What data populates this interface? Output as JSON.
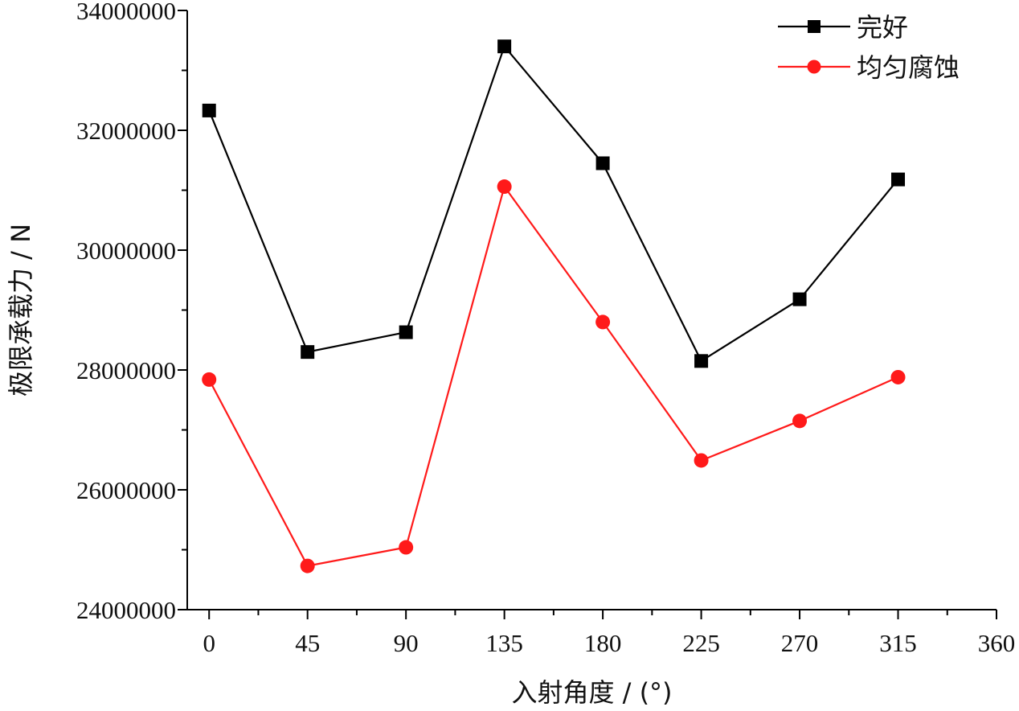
{
  "chart_data": {
    "type": "line",
    "title": "",
    "xlabel": "入射角度 / (°)",
    "ylabel": "极限承载力 / N",
    "xlim": [
      -10,
      360
    ],
    "ylim": [
      24000000,
      34000000
    ],
    "xticks": [
      0,
      45,
      90,
      135,
      180,
      225,
      270,
      315,
      360
    ],
    "yticks": [
      24000000,
      26000000,
      28000000,
      30000000,
      32000000,
      34000000
    ],
    "ytick_labels": [
      "24000000",
      "26000000",
      "28000000",
      "30000000",
      "32000000",
      "34000000"
    ],
    "legend_position": "top-right",
    "x": [
      0,
      45,
      90,
      135,
      180,
      225,
      270,
      315
    ],
    "series": [
      {
        "name": "完好",
        "color": "#000000",
        "marker": "square",
        "values": [
          32330000,
          28300000,
          28630000,
          33400000,
          31450000,
          28150000,
          29180000,
          31180000
        ]
      },
      {
        "name": "均匀腐蚀",
        "color": "#ff1a1a",
        "marker": "circle",
        "values": [
          27840000,
          24730000,
          25040000,
          31060000,
          28800000,
          26490000,
          27150000,
          27880000
        ]
      }
    ]
  }
}
